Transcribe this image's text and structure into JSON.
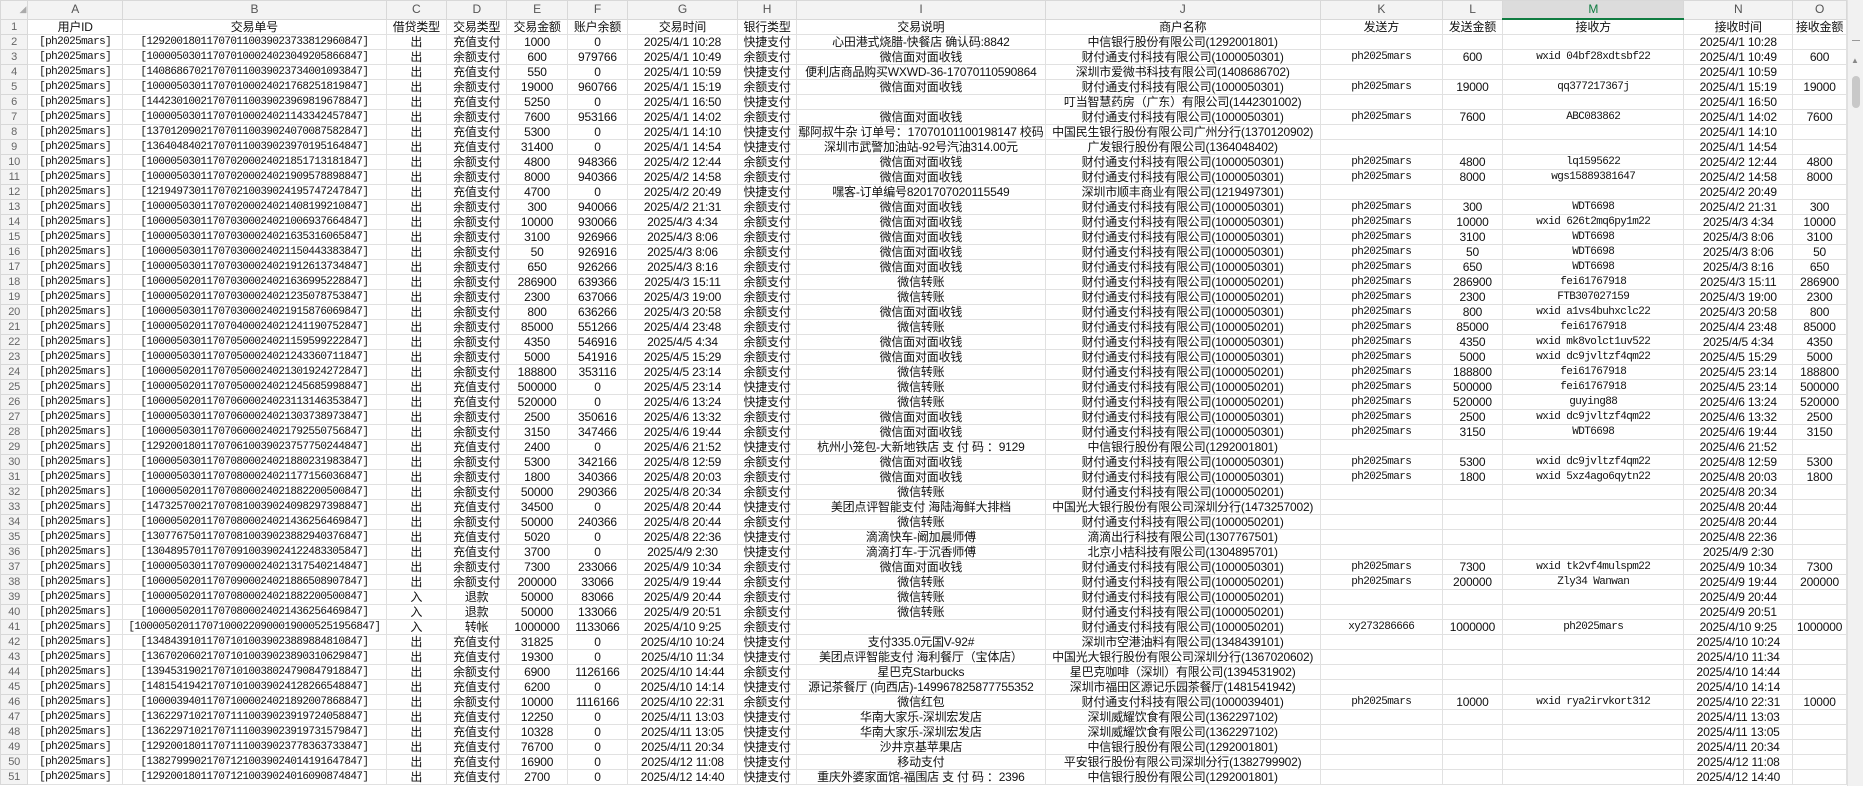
{
  "sheet": {
    "corner_icon": "select-all-triangle",
    "selected_column": "M",
    "accent_color": "#107c41",
    "column_letters": [
      "A",
      "B",
      "C",
      "D",
      "E",
      "F",
      "G",
      "H",
      "I",
      "J",
      "K",
      "L",
      "M",
      "N",
      "O"
    ],
    "headers": [
      "用户ID",
      "交易单号",
      "借贷类型",
      "交易类型",
      "交易金额",
      "账户余额",
      "交易时间",
      "银行类型",
      "交易说明",
      "商户名称",
      "发送方",
      "发送金额",
      "接收方",
      "接收时间",
      "接收金额"
    ],
    "rows": [
      [
        "[ph2025mars]",
        "[129200180117070110039023733812960847]",
        "出",
        "充值支付",
        "1000",
        "0",
        "2025/4/1 10:28",
        "快捷支付",
        "心田港式烧腊-快餐店 确认码:8842",
        "中信银行股份有限公司(1292001801)",
        "",
        "",
        "",
        "2025/4/1 10:28",
        ""
      ],
      [
        "[ph2025mars]",
        "[100005030117070100024023049205866847]",
        "出",
        "余额支付",
        "600",
        "979766",
        "2025/4/1 10:49",
        "余额支付",
        "微信面对面收钱",
        "财付通支付科技有限公司(1000050301)",
        "ph2025mars",
        "600",
        "wxid 04bf28xdtsbf22",
        "2025/4/1 10:49",
        "600"
      ],
      [
        "[ph2025mars]",
        "[140868670217070110039023734001093847]",
        "出",
        "充值支付",
        "550",
        "0",
        "2025/4/1 10:59",
        "快捷支付",
        "便利店商品购买WXWD-36-17070110590864",
        "深圳市爱微书科技有限公司(1408686702)",
        "",
        "",
        "",
        "2025/4/1 10:59",
        ""
      ],
      [
        "[ph2025mars]",
        "[100005030117070100024021768251819847]",
        "出",
        "余额支付",
        "19000",
        "960766",
        "2025/4/1 15:19",
        "余额支付",
        "微信面对面收钱",
        "财付通支付科技有限公司(1000050301)",
        "ph2025mars",
        "19000",
        "qq377217367j",
        "2025/4/1 15:19",
        "19000"
      ],
      [
        "[ph2025mars]",
        "[144230100217070110039023969819678847]",
        "出",
        "充值支付",
        "5250",
        "0",
        "2025/4/1 16:50",
        "快捷支付",
        "",
        "叮当智慧药房（广东）有限公司(1442301002)",
        "",
        "",
        "",
        "2025/4/1 16:50",
        ""
      ],
      [
        "[ph2025mars]",
        "[100005030117070100024021143342457847]",
        "出",
        "余额支付",
        "7600",
        "953166",
        "2025/4/1 14:02",
        "余额支付",
        "微信面对面收钱",
        "财付通支付科技有限公司(1000050301)",
        "ph2025mars",
        "7600",
        "ABC083862",
        "2025/4/1 14:02",
        "7600"
      ],
      [
        "[ph2025mars]",
        "[137012090217070110039024070087582847]",
        "出",
        "充值支付",
        "5300",
        "0",
        "2025/4/1 14:10",
        "快捷支付",
        "鄢阿叔牛杂 订单号：17070101100198147 校码",
        "中国民生银行股份有限公司广州分行(1370120902)",
        "",
        "",
        "",
        "2025/4/1 14:10",
        ""
      ],
      [
        "[ph2025mars]",
        "[136404840217070110039023970195164847]",
        "出",
        "充值支付",
        "31400",
        "0",
        "2025/4/1 14:54",
        "快捷支付",
        "深圳市武警加油站-92号汽油314.00元",
        "广发银行股份有限公司(1364048402)",
        "",
        "",
        "",
        "2025/4/1 14:54",
        ""
      ],
      [
        "[ph2025mars]",
        "[100005030117070200024021851713181847]",
        "出",
        "余额支付",
        "4800",
        "948366",
        "2025/4/2 12:44",
        "余额支付",
        "微信面对面收钱",
        "财付通支付科技有限公司(1000050301)",
        "ph2025mars",
        "4800",
        "lq1595622",
        "2025/4/2 12:44",
        "4800"
      ],
      [
        "[ph2025mars]",
        "[100005030117070200024021909578898847]",
        "出",
        "余额支付",
        "8000",
        "940366",
        "2025/4/2 14:58",
        "余额支付",
        "微信面对面收钱",
        "财付通支付科技有限公司(1000050301)",
        "ph2025mars",
        "8000",
        "wgs15889381647",
        "2025/4/2 14:58",
        "8000"
      ],
      [
        "[ph2025mars]",
        "[121949730117070210039024195747247847]",
        "出",
        "充值支付",
        "4700",
        "0",
        "2025/4/2 20:49",
        "快捷支付",
        "嘿客-订单编号8201707020115549",
        "深圳市顺丰商业有限公司(1219497301)",
        "",
        "",
        "",
        "2025/4/2 20:49",
        ""
      ],
      [
        "[ph2025mars]",
        "[100005030117070200024021408199210847]",
        "出",
        "余额支付",
        "300",
        "940066",
        "2025/4/2 21:31",
        "余额支付",
        "微信面对面收钱",
        "财付通支付科技有限公司(1000050301)",
        "ph2025mars",
        "300",
        "WDT6698",
        "2025/4/2 21:31",
        "300"
      ],
      [
        "[ph2025mars]",
        "[100005030117070300024021006937664847]",
        "出",
        "余额支付",
        "10000",
        "930066",
        "2025/4/3 4:34",
        "余额支付",
        "微信面对面收钱",
        "财付通支付科技有限公司(1000050301)",
        "ph2025mars",
        "10000",
        "wxid 626t2mq6py1m22",
        "2025/4/3 4:34",
        "10000"
      ],
      [
        "[ph2025mars]",
        "[100005030117070300024021635316065847]",
        "出",
        "余额支付",
        "3100",
        "926966",
        "2025/4/3 8:06",
        "余额支付",
        "微信面对面收钱",
        "财付通支付科技有限公司(1000050301)",
        "ph2025mars",
        "3100",
        "WDT6698",
        "2025/4/3 8:06",
        "3100"
      ],
      [
        "[ph2025mars]",
        "[100005030117070300024021150443383847]",
        "出",
        "余额支付",
        "50",
        "926916",
        "2025/4/3 8:06",
        "余额支付",
        "微信面对面收钱",
        "财付通支付科技有限公司(1000050301)",
        "ph2025mars",
        "50",
        "WDT6698",
        "2025/4/3 8:06",
        "50"
      ],
      [
        "[ph2025mars]",
        "[100005030117070300024021912613734847]",
        "出",
        "余额支付",
        "650",
        "926266",
        "2025/4/3 8:16",
        "余额支付",
        "微信面对面收钱",
        "财付通支付科技有限公司(1000050301)",
        "ph2025mars",
        "650",
        "WDT6698",
        "2025/4/3 8:16",
        "650"
      ],
      [
        "[ph2025mars]",
        "[100005020117070300024021636995228847]",
        "出",
        "余额支付",
        "286900",
        "639366",
        "2025/4/3 15:11",
        "余额支付",
        "微信转账",
        "财付通支付科技有限公司(1000050201)",
        "ph2025mars",
        "286900",
        "fei61767918",
        "2025/4/3 15:11",
        "286900"
      ],
      [
        "[ph2025mars]",
        "[100005020117070300024021235078753847]",
        "出",
        "余额支付",
        "2300",
        "637066",
        "2025/4/3 19:00",
        "余额支付",
        "微信转账",
        "财付通支付科技有限公司(1000050201)",
        "ph2025mars",
        "2300",
        "FTB307027159",
        "2025/4/3 19:00",
        "2300"
      ],
      [
        "[ph2025mars]",
        "[100005030117070300024021915876069847]",
        "出",
        "余额支付",
        "800",
        "636266",
        "2025/4/3 20:58",
        "余额支付",
        "微信面对面收钱",
        "财付通支付科技有限公司(1000050301)",
        "ph2025mars",
        "800",
        "wxid a1vs4buhxclc22",
        "2025/4/3 20:58",
        "800"
      ],
      [
        "[ph2025mars]",
        "[100005020117070400024021241190752847]",
        "出",
        "余额支付",
        "85000",
        "551266",
        "2025/4/4 23:48",
        "余额支付",
        "微信转账",
        "财付通支付科技有限公司(1000050201)",
        "ph2025mars",
        "85000",
        "fei61767918",
        "2025/4/4 23:48",
        "85000"
      ],
      [
        "[ph2025mars]",
        "[100005030117070500024021159599222847]",
        "出",
        "余额支付",
        "4350",
        "546916",
        "2025/4/5 4:34",
        "余额支付",
        "微信面对面收钱",
        "财付通支付科技有限公司(1000050301)",
        "ph2025mars",
        "4350",
        "wxid mk8volct1uv522",
        "2025/4/5 4:34",
        "4350"
      ],
      [
        "[ph2025mars]",
        "[100005030117070500024021243360711847]",
        "出",
        "余额支付",
        "5000",
        "541916",
        "2025/4/5 15:29",
        "余额支付",
        "微信面对面收钱",
        "财付通支付科技有限公司(1000050301)",
        "ph2025mars",
        "5000",
        "wxid dc9jvltzf4qm22",
        "2025/4/5 15:29",
        "5000"
      ],
      [
        "[ph2025mars]",
        "[100005020117070500024021301924272847]",
        "出",
        "余额支付",
        "188800",
        "353116",
        "2025/4/5 23:14",
        "余额支付",
        "微信转账",
        "财付通支付科技有限公司(1000050201)",
        "ph2025mars",
        "188800",
        "fei61767918",
        "2025/4/5 23:14",
        "188800"
      ],
      [
        "[ph2025mars]",
        "[100005020117070500024021245685998847]",
        "出",
        "充值支付",
        "500000",
        "0",
        "2025/4/5 23:14",
        "快捷支付",
        "微信转账",
        "财付通支付科技有限公司(1000050201)",
        "ph2025mars",
        "500000",
        "fei61767918",
        "2025/4/5 23:14",
        "500000"
      ],
      [
        "[ph2025mars]",
        "[100005020117070600024023113146353847]",
        "出",
        "充值支付",
        "520000",
        "0",
        "2025/4/6 13:24",
        "快捷支付",
        "微信转账",
        "财付通支付科技有限公司(1000050201)",
        "ph2025mars",
        "520000",
        "guying88",
        "2025/4/6 13:24",
        "520000"
      ],
      [
        "[ph2025mars]",
        "[100005030117070600024021303738973847]",
        "出",
        "余额支付",
        "2500",
        "350616",
        "2025/4/6 13:32",
        "余额支付",
        "微信面对面收钱",
        "财付通支付科技有限公司(1000050301)",
        "ph2025mars",
        "2500",
        "wxid dc9jvltzf4qm22",
        "2025/4/6 13:32",
        "2500"
      ],
      [
        "[ph2025mars]",
        "[100005030117070600024021792550756847]",
        "出",
        "余额支付",
        "3150",
        "347466",
        "2025/4/6 19:44",
        "余额支付",
        "微信面对面收钱",
        "财付通支付科技有限公司(1000050301)",
        "ph2025mars",
        "3150",
        "WDT6698",
        "2025/4/6 19:44",
        "3150"
      ],
      [
        "[ph2025mars]",
        "[129200180117070610039023757750244847]",
        "出",
        "充值支付",
        "2400",
        "0",
        "2025/4/6 21:52",
        "快捷支付",
        "杭州小笼包-大新地铁店 支 付 码 ：9129",
        "中信银行股份有限公司(1292001801)",
        "",
        "",
        "",
        "2025/4/6 21:52",
        ""
      ],
      [
        "[ph2025mars]",
        "[100005030117070800024021880231983847]",
        "出",
        "余额支付",
        "5300",
        "342166",
        "2025/4/8 12:59",
        "余额支付",
        "微信面对面收钱",
        "财付通支付科技有限公司(1000050301)",
        "ph2025mars",
        "5300",
        "wxid dc9jvltzf4qm22",
        "2025/4/8 12:59",
        "5300"
      ],
      [
        "[ph2025mars]",
        "[100005030117070800024021177156036847]",
        "出",
        "余额支付",
        "1800",
        "340366",
        "2025/4/8 20:03",
        "余额支付",
        "微信面对面收钱",
        "财付通支付科技有限公司(1000050301)",
        "ph2025mars",
        "1800",
        "wxid 5xz4ago6qytn22",
        "2025/4/8 20:03",
        "1800"
      ],
      [
        "[ph2025mars]",
        "[100005020117070800024021882200500847]",
        "出",
        "余额支付",
        "50000",
        "290366",
        "2025/4/8 20:34",
        "余额支付",
        "微信转账",
        "财付通支付科技有限公司(1000050201)",
        "",
        "",
        "",
        "2025/4/8 20:34",
        ""
      ],
      [
        "[ph2025mars]",
        "[147325700217070810039024098297398847]",
        "出",
        "充值支付",
        "34500",
        "0",
        "2025/4/8 20:44",
        "快捷支付",
        "美团点评智能支付 海陆海鲜大排档",
        "中国光大银行股份有限公司深圳分行(1473257002)",
        "",
        "",
        "",
        "2025/4/8 20:44",
        ""
      ],
      [
        "[ph2025mars]",
        "[100005020117070800024021436256469847]",
        "出",
        "余额支付",
        "50000",
        "240366",
        "2025/4/8 20:44",
        "余额支付",
        "微信转账",
        "财付通支付科技有限公司(1000050201)",
        "",
        "",
        "",
        "2025/4/8 20:44",
        ""
      ],
      [
        "[ph2025mars]",
        "[130776750117070810039023882940376847]",
        "出",
        "充值支付",
        "5020",
        "0",
        "2025/4/8 22:36",
        "快捷支付",
        "滴滴快车-阚加晨师傅",
        "滴滴出行科技有限公司(1307767501)",
        "",
        "",
        "",
        "2025/4/8 22:36",
        ""
      ],
      [
        "[ph2025mars]",
        "[130489570117070910039024122483305847]",
        "出",
        "充值支付",
        "3700",
        "0",
        "2025/4/9 2:30",
        "快捷支付",
        "滴滴打车-于沉香师傅",
        "北京小桔科技有限公司(1304895701)",
        "",
        "",
        "",
        "2025/4/9 2:30",
        ""
      ],
      [
        "[ph2025mars]",
        "[100005030117070900024021317540214847]",
        "出",
        "余额支付",
        "7300",
        "233066",
        "2025/4/9 10:34",
        "余额支付",
        "微信面对面收钱",
        "财付通支付科技有限公司(1000050301)",
        "ph2025mars",
        "7300",
        "wxid tk2vf4mulspm22",
        "2025/4/9 10:34",
        "7300"
      ],
      [
        "[ph2025mars]",
        "[100005020117070900024021886508907847]",
        "出",
        "余额支付",
        "200000",
        "33066",
        "2025/4/9 19:44",
        "余额支付",
        "微信转账",
        "财付通支付科技有限公司(1000050201)",
        "ph2025mars",
        "200000",
        "Zly34 Wanwan",
        "2025/4/9 19:44",
        "200000"
      ],
      [
        "[ph2025mars]",
        "[100005020117070800024021882200500847]",
        "入",
        "退款",
        "50000",
        "83066",
        "2025/4/9 20:44",
        "余额支付",
        "微信转账",
        "财付通支付科技有限公司(1000050201)",
        "",
        "",
        "",
        "2025/4/9 20:44",
        ""
      ],
      [
        "[ph2025mars]",
        "[100005020117070800024021436256469847]",
        "入",
        "退款",
        "50000",
        "133066",
        "2025/4/9 20:51",
        "余额支付",
        "微信转账",
        "财付通支付科技有限公司(1000050201)",
        "",
        "",
        "",
        "2025/4/9 20:51",
        ""
      ],
      [
        "[ph2025mars]",
        "[1000050201170710002209000190005251956847]",
        "入",
        "转帐",
        "1000000",
        "1133066",
        "2025/4/10 9:25",
        "余额支付",
        "",
        "财付通支付科技有限公司(1000050201)",
        "xy273286666",
        "1000000",
        "ph2025mars",
        "2025/4/10 9:25",
        "1000000"
      ],
      [
        "[ph2025mars]",
        "[134843910117071010039023889884810847]",
        "出",
        "充值支付",
        "31825",
        "0",
        "2025/4/10 10:24",
        "快捷支付",
        "支付335.0元国V-92#",
        "深圳市空港油料有限公司(1348439101)",
        "",
        "",
        "",
        "2025/4/10 10:24",
        ""
      ],
      [
        "[ph2025mars]",
        "[136702060217071010039023890310629847]",
        "出",
        "充值支付",
        "19300",
        "0",
        "2025/4/10 11:34",
        "快捷支付",
        "美团点评智能支付 海利餐厅（宝体店）",
        "中国光大银行股份有限公司深圳分行(1367020602)",
        "",
        "",
        "",
        "2025/4/10 11:34",
        ""
      ],
      [
        "[ph2025mars]",
        "[139453190217071010038024790847918847]",
        "出",
        "余额支付",
        "6900",
        "1126166",
        "2025/4/10 14:44",
        "余额支付",
        "星巴克Starbucks",
        "星巴克咖啡（深圳）有限公司(1394531902)",
        "",
        "",
        "",
        "2025/4/10 14:44",
        ""
      ],
      [
        "[ph2025mars]",
        "[148154194217071010039024128266548847]",
        "出",
        "充值支付",
        "6200",
        "0",
        "2025/4/10 14:14",
        "快捷支付",
        "源记茶餐厅 (向西店)-149967825877755352",
        "深圳市福田区源记乐园茶餐厅(1481541942)",
        "",
        "",
        "",
        "2025/4/10 14:14",
        ""
      ],
      [
        "[ph2025mars]",
        "[100003940117071000024021892007868847]",
        "出",
        "余额支付",
        "10000",
        "1116166",
        "2025/4/10 22:31",
        "余额支付",
        "微信红包",
        "财付通支付科技有限公司(1000039401)",
        "ph2025mars",
        "10000",
        "wxid rya2irvkort312",
        "2025/4/10 22:31",
        "10000"
      ],
      [
        "[ph2025mars]",
        "[136229710217071110039023919724058847]",
        "出",
        "充值支付",
        "12250",
        "0",
        "2025/4/11 13:03",
        "快捷支付",
        "华南大家乐-深圳宏发店",
        "深圳威耀饮食有限公司(1362297102)",
        "",
        "",
        "",
        "2025/4/11 13:03",
        ""
      ],
      [
        "[ph2025mars]",
        "[136229710217071110039023919731579847]",
        "出",
        "充值支付",
        "10328",
        "0",
        "2025/4/11 13:05",
        "快捷支付",
        "华南大家乐-深圳宏发店",
        "深圳威耀饮食有限公司(1362297102)",
        "",
        "",
        "",
        "2025/4/11 13:05",
        ""
      ],
      [
        "[ph2025mars]",
        "[129200180117071110039023778363733847]",
        "出",
        "充值支付",
        "76700",
        "0",
        "2025/4/11 20:34",
        "快捷支付",
        "沙井京基苹果店",
        "中信银行股份有限公司(1292001801)",
        "",
        "",
        "",
        "2025/4/11 20:34",
        ""
      ],
      [
        "[ph2025mars]",
        "[138279990217071210039024014191647847]",
        "出",
        "充值支付",
        "16900",
        "0",
        "2025/4/12 11:08",
        "快捷支付",
        "移动支付",
        "平安银行股份有限公司深圳分行(1382799902)",
        "",
        "",
        "",
        "2025/4/12 11:08",
        ""
      ],
      [
        "[ph2025mars]",
        "[129200180117071210039024016090874847]",
        "出",
        "充值支付",
        "2700",
        "0",
        "2025/4/12 14:40",
        "快捷支付",
        "重庆外婆家面馆-福围店 支 付 码 ：2396",
        "中信银行股份有限公司(1292001801)",
        "",
        "",
        "",
        "2025/4/12 14:40",
        ""
      ]
    ]
  },
  "scrollbar": {
    "up_icon": "triangle-up"
  }
}
